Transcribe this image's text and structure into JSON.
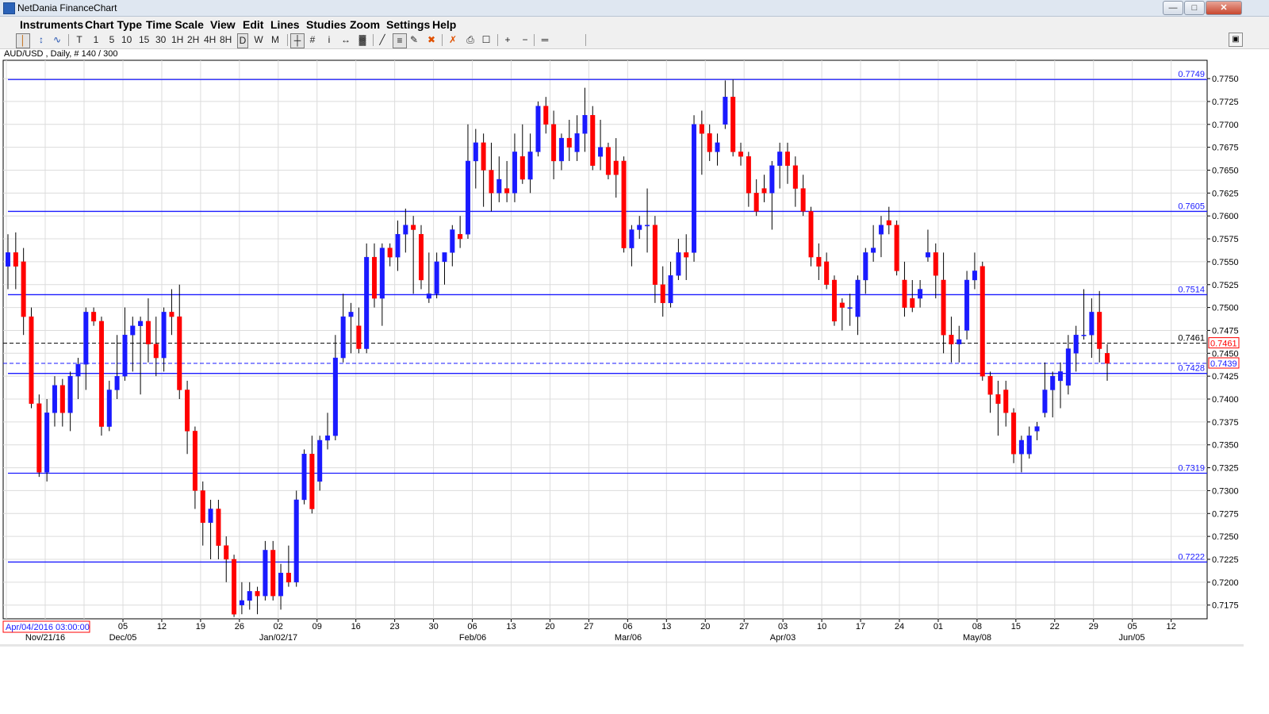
{
  "window": {
    "title": "NetDania FinanceChart"
  },
  "menu": [
    "Instruments",
    "Chart Type",
    "Time Scale",
    "View",
    "Edit",
    "Lines",
    "Studies",
    "Zoom",
    "Settings",
    "Help"
  ],
  "toolbar": {
    "timescales": [
      "T",
      "1",
      "5",
      "10",
      "15",
      "30",
      "1H",
      "2H",
      "4H",
      "8H",
      "D",
      "W",
      "M"
    ],
    "selected_timescale": "D",
    "tools_icons": [
      "candle-chart-icon",
      "bar-chart-icon",
      "line-chart-icon",
      "crosshair-icon",
      "grid-icon",
      "info-icon",
      "arrows-icon",
      "volume-icon",
      "trend-line-icon",
      "fibonacci-icon",
      "pen-icon",
      "delete-line-icon",
      "delete-all-icon",
      "print-icon",
      "print-preview-icon",
      "zoom-in-icon",
      "zoom-out-icon",
      "fit-icon"
    ]
  },
  "symbol_info": "AUD/USD , Daily, # 140 / 300",
  "cursor_date": "Apr/04/2016 03:00:00",
  "chart_data": {
    "type": "candlestick",
    "symbol": "AUD/USD",
    "timeframe": "Daily",
    "ylim": [
      0.716,
      0.777
    ],
    "y_ticks": [
      0.7175,
      0.72,
      0.7225,
      0.725,
      0.7275,
      0.73,
      0.7325,
      0.735,
      0.7375,
      0.74,
      0.7425,
      0.745,
      0.7475,
      0.75,
      0.7525,
      0.755,
      0.7575,
      0.76,
      0.7625,
      0.765,
      0.7675,
      0.77,
      0.7725,
      0.775
    ],
    "x_tick_labels": [
      "05",
      "12",
      "19",
      "26",
      "02",
      "09",
      "16",
      "23",
      "30",
      "06",
      "13",
      "20",
      "27",
      "06",
      "13",
      "20",
      "27",
      "03",
      "10",
      "17",
      "24",
      "01",
      "08",
      "15",
      "22",
      "29",
      "05",
      "12"
    ],
    "x_major_labels": [
      "Nov/21/16",
      "Dec/05",
      "Jan/02/17",
      "Feb/06",
      "Mar/06",
      "Apr/03",
      "May/08",
      "Jun/05"
    ],
    "horizontal_levels": [
      0.7749,
      0.7605,
      0.7514,
      0.7428,
      0.7319,
      0.7222
    ],
    "dashed_levels": [
      {
        "value": 0.7461,
        "label": "0.7461",
        "color": "#000000"
      },
      {
        "value": 0.7439,
        "label": "0.7439",
        "color": "#1a1aff"
      }
    ],
    "current_price_tags": [
      "0.7461",
      "0.7439"
    ],
    "up_color": "#1a1aff",
    "down_color": "#ff0000",
    "level_color": "#1a1aff",
    "candles": [
      {
        "o": 0.7545,
        "h": 0.758,
        "l": 0.752,
        "c": 0.756
      },
      {
        "o": 0.756,
        "h": 0.7582,
        "l": 0.752,
        "c": 0.7545
      },
      {
        "o": 0.755,
        "h": 0.7565,
        "l": 0.747,
        "c": 0.749
      },
      {
        "o": 0.749,
        "h": 0.75,
        "l": 0.739,
        "c": 0.7395
      },
      {
        "o": 0.7395,
        "h": 0.7405,
        "l": 0.7315,
        "c": 0.732
      },
      {
        "o": 0.732,
        "h": 0.74,
        "l": 0.731,
        "c": 0.7385
      },
      {
        "o": 0.7385,
        "h": 0.7425,
        "l": 0.737,
        "c": 0.7415
      },
      {
        "o": 0.7415,
        "h": 0.7422,
        "l": 0.737,
        "c": 0.7385
      },
      {
        "o": 0.7385,
        "h": 0.743,
        "l": 0.7365,
        "c": 0.7425
      },
      {
        "o": 0.7425,
        "h": 0.7445,
        "l": 0.74,
        "c": 0.7438
      },
      {
        "o": 0.7438,
        "h": 0.75,
        "l": 0.741,
        "c": 0.7495
      },
      {
        "o": 0.7495,
        "h": 0.75,
        "l": 0.748,
        "c": 0.7485
      },
      {
        "o": 0.7485,
        "h": 0.749,
        "l": 0.736,
        "c": 0.737
      },
      {
        "o": 0.737,
        "h": 0.742,
        "l": 0.7365,
        "c": 0.741
      },
      {
        "o": 0.741,
        "h": 0.747,
        "l": 0.74,
        "c": 0.7425
      },
      {
        "o": 0.7425,
        "h": 0.75,
        "l": 0.742,
        "c": 0.747
      },
      {
        "o": 0.747,
        "h": 0.749,
        "l": 0.743,
        "c": 0.748
      },
      {
        "o": 0.748,
        "h": 0.749,
        "l": 0.7405,
        "c": 0.7485
      },
      {
        "o": 0.7485,
        "h": 0.751,
        "l": 0.744,
        "c": 0.746
      },
      {
        "o": 0.746,
        "h": 0.749,
        "l": 0.7425,
        "c": 0.7445
      },
      {
        "o": 0.7445,
        "h": 0.75,
        "l": 0.743,
        "c": 0.7495
      },
      {
        "o": 0.7495,
        "h": 0.752,
        "l": 0.747,
        "c": 0.749
      },
      {
        "o": 0.749,
        "h": 0.7525,
        "l": 0.74,
        "c": 0.741
      },
      {
        "o": 0.741,
        "h": 0.742,
        "l": 0.734,
        "c": 0.7365
      },
      {
        "o": 0.7365,
        "h": 0.737,
        "l": 0.728,
        "c": 0.73
      },
      {
        "o": 0.73,
        "h": 0.731,
        "l": 0.724,
        "c": 0.7265
      },
      {
        "o": 0.7265,
        "h": 0.729,
        "l": 0.7225,
        "c": 0.728
      },
      {
        "o": 0.728,
        "h": 0.729,
        "l": 0.7225,
        "c": 0.724
      },
      {
        "o": 0.724,
        "h": 0.725,
        "l": 0.72,
        "c": 0.7225
      },
      {
        "o": 0.7225,
        "h": 0.723,
        "l": 0.7162,
        "c": 0.7165
      },
      {
        "o": 0.7175,
        "h": 0.72,
        "l": 0.7165,
        "c": 0.718
      },
      {
        "o": 0.718,
        "h": 0.72,
        "l": 0.717,
        "c": 0.719
      },
      {
        "o": 0.719,
        "h": 0.7195,
        "l": 0.7165,
        "c": 0.7185
      },
      {
        "o": 0.7185,
        "h": 0.7245,
        "l": 0.718,
        "c": 0.7235
      },
      {
        "o": 0.7235,
        "h": 0.7245,
        "l": 0.718,
        "c": 0.7185
      },
      {
        "o": 0.7185,
        "h": 0.722,
        "l": 0.717,
        "c": 0.721
      },
      {
        "o": 0.721,
        "h": 0.724,
        "l": 0.7195,
        "c": 0.72
      },
      {
        "o": 0.72,
        "h": 0.73,
        "l": 0.7195,
        "c": 0.729
      },
      {
        "o": 0.729,
        "h": 0.7345,
        "l": 0.7285,
        "c": 0.734
      },
      {
        "o": 0.734,
        "h": 0.736,
        "l": 0.7275,
        "c": 0.728
      },
      {
        "o": 0.731,
        "h": 0.736,
        "l": 0.73,
        "c": 0.7355
      },
      {
        "o": 0.7355,
        "h": 0.7385,
        "l": 0.7345,
        "c": 0.736
      },
      {
        "o": 0.736,
        "h": 0.747,
        "l": 0.7355,
        "c": 0.7445
      },
      {
        "o": 0.7445,
        "h": 0.7515,
        "l": 0.744,
        "c": 0.749
      },
      {
        "o": 0.749,
        "h": 0.7505,
        "l": 0.745,
        "c": 0.7495
      },
      {
        "o": 0.748,
        "h": 0.75,
        "l": 0.745,
        "c": 0.7455
      },
      {
        "o": 0.7455,
        "h": 0.757,
        "l": 0.745,
        "c": 0.7555
      },
      {
        "o": 0.7555,
        "h": 0.757,
        "l": 0.75,
        "c": 0.751
      },
      {
        "o": 0.751,
        "h": 0.757,
        "l": 0.748,
        "c": 0.7565
      },
      {
        "o": 0.7565,
        "h": 0.757,
        "l": 0.7545,
        "c": 0.7555
      },
      {
        "o": 0.7555,
        "h": 0.7595,
        "l": 0.754,
        "c": 0.758
      },
      {
        "o": 0.758,
        "h": 0.7608,
        "l": 0.756,
        "c": 0.759
      },
      {
        "o": 0.759,
        "h": 0.76,
        "l": 0.7515,
        "c": 0.7585
      },
      {
        "o": 0.758,
        "h": 0.759,
        "l": 0.752,
        "c": 0.753
      },
      {
        "o": 0.751,
        "h": 0.756,
        "l": 0.7505,
        "c": 0.7515
      },
      {
        "o": 0.7515,
        "h": 0.756,
        "l": 0.751,
        "c": 0.755
      },
      {
        "o": 0.755,
        "h": 0.756,
        "l": 0.7525,
        "c": 0.756
      },
      {
        "o": 0.756,
        "h": 0.759,
        "l": 0.7545,
        "c": 0.7585
      },
      {
        "o": 0.758,
        "h": 0.76,
        "l": 0.7565,
        "c": 0.7575
      },
      {
        "o": 0.758,
        "h": 0.77,
        "l": 0.7575,
        "c": 0.766
      },
      {
        "o": 0.766,
        "h": 0.7695,
        "l": 0.763,
        "c": 0.768
      },
      {
        "o": 0.768,
        "h": 0.769,
        "l": 0.761,
        "c": 0.765
      },
      {
        "o": 0.765,
        "h": 0.768,
        "l": 0.7605,
        "c": 0.7625
      },
      {
        "o": 0.7625,
        "h": 0.7665,
        "l": 0.7615,
        "c": 0.764
      },
      {
        "o": 0.763,
        "h": 0.766,
        "l": 0.7615,
        "c": 0.7625
      },
      {
        "o": 0.7625,
        "h": 0.769,
        "l": 0.7615,
        "c": 0.767
      },
      {
        "o": 0.7665,
        "h": 0.77,
        "l": 0.7635,
        "c": 0.764
      },
      {
        "o": 0.764,
        "h": 0.769,
        "l": 0.7625,
        "c": 0.767
      },
      {
        "o": 0.767,
        "h": 0.7725,
        "l": 0.7665,
        "c": 0.772
      },
      {
        "o": 0.772,
        "h": 0.773,
        "l": 0.769,
        "c": 0.77
      },
      {
        "o": 0.77,
        "h": 0.7715,
        "l": 0.764,
        "c": 0.766
      },
      {
        "o": 0.766,
        "h": 0.769,
        "l": 0.765,
        "c": 0.7685
      },
      {
        "o": 0.7685,
        "h": 0.7705,
        "l": 0.766,
        "c": 0.7675
      },
      {
        "o": 0.767,
        "h": 0.771,
        "l": 0.766,
        "c": 0.769
      },
      {
        "o": 0.769,
        "h": 0.774,
        "l": 0.767,
        "c": 0.771
      },
      {
        "o": 0.771,
        "h": 0.772,
        "l": 0.765,
        "c": 0.7655
      },
      {
        "o": 0.7665,
        "h": 0.7705,
        "l": 0.765,
        "c": 0.7675
      },
      {
        "o": 0.7675,
        "h": 0.768,
        "l": 0.764,
        "c": 0.7645
      },
      {
        "o": 0.766,
        "h": 0.7685,
        "l": 0.762,
        "c": 0.7645
      },
      {
        "o": 0.766,
        "h": 0.7665,
        "l": 0.756,
        "c": 0.7565
      },
      {
        "o": 0.7565,
        "h": 0.759,
        "l": 0.7545,
        "c": 0.7585
      },
      {
        "o": 0.7585,
        "h": 0.76,
        "l": 0.7575,
        "c": 0.759
      },
      {
        "o": 0.759,
        "h": 0.763,
        "l": 0.756,
        "c": 0.759
      },
      {
        "o": 0.759,
        "h": 0.76,
        "l": 0.7505,
        "c": 0.7525
      },
      {
        "o": 0.7525,
        "h": 0.7545,
        "l": 0.749,
        "c": 0.7505
      },
      {
        "o": 0.7505,
        "h": 0.755,
        "l": 0.75,
        "c": 0.7535
      },
      {
        "o": 0.7535,
        "h": 0.7575,
        "l": 0.753,
        "c": 0.756
      },
      {
        "o": 0.756,
        "h": 0.758,
        "l": 0.753,
        "c": 0.7555
      },
      {
        "o": 0.756,
        "h": 0.771,
        "l": 0.755,
        "c": 0.77
      },
      {
        "o": 0.77,
        "h": 0.7715,
        "l": 0.7645,
        "c": 0.769
      },
      {
        "o": 0.769,
        "h": 0.77,
        "l": 0.766,
        "c": 0.767
      },
      {
        "o": 0.767,
        "h": 0.769,
        "l": 0.7655,
        "c": 0.768
      },
      {
        "o": 0.77,
        "h": 0.7748,
        "l": 0.7695,
        "c": 0.773
      },
      {
        "o": 0.773,
        "h": 0.7749,
        "l": 0.7665,
        "c": 0.767
      },
      {
        "o": 0.767,
        "h": 0.768,
        "l": 0.7655,
        "c": 0.7665
      },
      {
        "o": 0.7665,
        "h": 0.767,
        "l": 0.761,
        "c": 0.7625
      },
      {
        "o": 0.7625,
        "h": 0.764,
        "l": 0.76,
        "c": 0.7605
      },
      {
        "o": 0.763,
        "h": 0.7645,
        "l": 0.7615,
        "c": 0.7625
      },
      {
        "o": 0.7625,
        "h": 0.766,
        "l": 0.7585,
        "c": 0.7655
      },
      {
        "o": 0.7655,
        "h": 0.768,
        "l": 0.763,
        "c": 0.767
      },
      {
        "o": 0.767,
        "h": 0.768,
        "l": 0.7635,
        "c": 0.7655
      },
      {
        "o": 0.7655,
        "h": 0.7665,
        "l": 0.761,
        "c": 0.763
      },
      {
        "o": 0.763,
        "h": 0.7645,
        "l": 0.76,
        "c": 0.7605
      },
      {
        "o": 0.7605,
        "h": 0.761,
        "l": 0.7545,
        "c": 0.7555
      },
      {
        "o": 0.7555,
        "h": 0.757,
        "l": 0.753,
        "c": 0.7545
      },
      {
        "o": 0.755,
        "h": 0.756,
        "l": 0.752,
        "c": 0.7525
      },
      {
        "o": 0.753,
        "h": 0.7535,
        "l": 0.748,
        "c": 0.7485
      },
      {
        "o": 0.7505,
        "h": 0.751,
        "l": 0.7475,
        "c": 0.75
      },
      {
        "o": 0.75,
        "h": 0.7515,
        "l": 0.748,
        "c": 0.75
      },
      {
        "o": 0.749,
        "h": 0.7535,
        "l": 0.747,
        "c": 0.753
      },
      {
        "o": 0.753,
        "h": 0.7565,
        "l": 0.7515,
        "c": 0.756
      },
      {
        "o": 0.756,
        "h": 0.759,
        "l": 0.755,
        "c": 0.7565
      },
      {
        "o": 0.758,
        "h": 0.76,
        "l": 0.7555,
        "c": 0.759
      },
      {
        "o": 0.7595,
        "h": 0.761,
        "l": 0.758,
        "c": 0.759
      },
      {
        "o": 0.759,
        "h": 0.7595,
        "l": 0.7535,
        "c": 0.754
      },
      {
        "o": 0.753,
        "h": 0.755,
        "l": 0.749,
        "c": 0.75
      },
      {
        "o": 0.751,
        "h": 0.753,
        "l": 0.7495,
        "c": 0.75
      },
      {
        "o": 0.751,
        "h": 0.753,
        "l": 0.75,
        "c": 0.752
      },
      {
        "o": 0.7555,
        "h": 0.7585,
        "l": 0.755,
        "c": 0.756
      },
      {
        "o": 0.756,
        "h": 0.757,
        "l": 0.751,
        "c": 0.7535
      },
      {
        "o": 0.753,
        "h": 0.756,
        "l": 0.745,
        "c": 0.747
      },
      {
        "o": 0.747,
        "h": 0.749,
        "l": 0.744,
        "c": 0.746
      },
      {
        "o": 0.746,
        "h": 0.748,
        "l": 0.744,
        "c": 0.7465
      },
      {
        "o": 0.7475,
        "h": 0.754,
        "l": 0.7465,
        "c": 0.753
      },
      {
        "o": 0.753,
        "h": 0.756,
        "l": 0.752,
        "c": 0.754
      },
      {
        "o": 0.7545,
        "h": 0.755,
        "l": 0.742,
        "c": 0.7425
      },
      {
        "o": 0.7425,
        "h": 0.743,
        "l": 0.7385,
        "c": 0.7405
      },
      {
        "o": 0.7405,
        "h": 0.742,
        "l": 0.736,
        "c": 0.7395
      },
      {
        "o": 0.741,
        "h": 0.742,
        "l": 0.737,
        "c": 0.7385
      },
      {
        "o": 0.7385,
        "h": 0.739,
        "l": 0.733,
        "c": 0.734
      },
      {
        "o": 0.734,
        "h": 0.736,
        "l": 0.732,
        "c": 0.7355
      },
      {
        "o": 0.734,
        "h": 0.737,
        "l": 0.7335,
        "c": 0.736
      },
      {
        "o": 0.7365,
        "h": 0.7375,
        "l": 0.7355,
        "c": 0.737
      },
      {
        "o": 0.7385,
        "h": 0.744,
        "l": 0.738,
        "c": 0.741
      },
      {
        "o": 0.741,
        "h": 0.743,
        "l": 0.738,
        "c": 0.7425
      },
      {
        "o": 0.742,
        "h": 0.744,
        "l": 0.739,
        "c": 0.743
      },
      {
        "o": 0.7415,
        "h": 0.747,
        "l": 0.7405,
        "c": 0.7455
      },
      {
        "o": 0.745,
        "h": 0.748,
        "l": 0.743,
        "c": 0.747
      },
      {
        "o": 0.747,
        "h": 0.752,
        "l": 0.7465,
        "c": 0.747
      },
      {
        "o": 0.747,
        "h": 0.751,
        "l": 0.7445,
        "c": 0.7495
      },
      {
        "o": 0.7495,
        "h": 0.7518,
        "l": 0.744,
        "c": 0.7455
      },
      {
        "o": 0.745,
        "h": 0.746,
        "l": 0.742,
        "c": 0.7439
      }
    ]
  }
}
